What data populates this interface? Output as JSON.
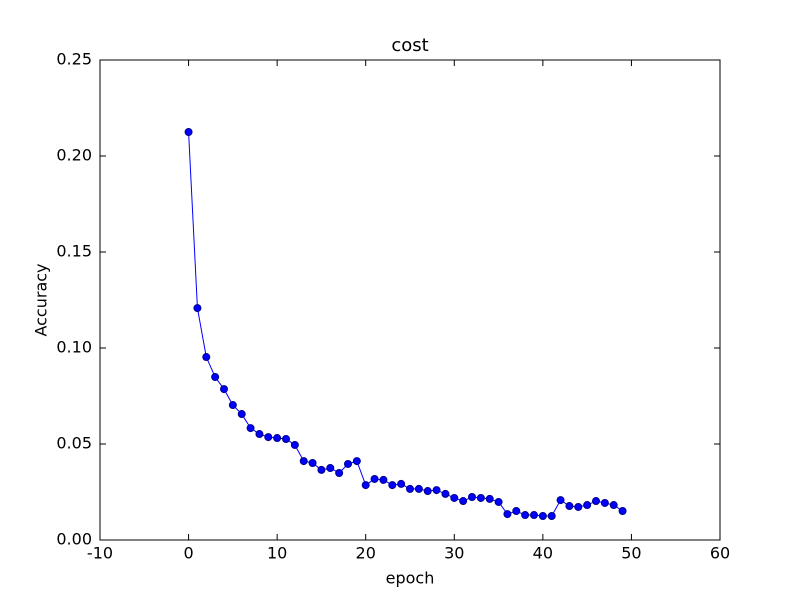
{
  "chart_data": {
    "type": "line",
    "title": "cost",
    "x_label": "epoch",
    "y_label": "Accuracy",
    "x": [
      0,
      1,
      2,
      3,
      4,
      5,
      6,
      7,
      8,
      9,
      10,
      11,
      12,
      13,
      14,
      15,
      16,
      17,
      18,
      19,
      20,
      21,
      22,
      23,
      24,
      25,
      26,
      27,
      28,
      29,
      30,
      31,
      32,
      33,
      34,
      35,
      36,
      37,
      38,
      39,
      40,
      41,
      42,
      43,
      44,
      45,
      46,
      47,
      48,
      49
    ],
    "series": [
      {
        "name": "cost",
        "color": "#0000ff",
        "marker_color": "#00008b",
        "values": [
          0.2125,
          0.1208,
          0.0953,
          0.0849,
          0.0786,
          0.0703,
          0.0656,
          0.0583,
          0.0552,
          0.0536,
          0.0531,
          0.0526,
          0.0495,
          0.0411,
          0.0401,
          0.0365,
          0.0375,
          0.0349,
          0.0396,
          0.0411,
          0.0286,
          0.0318,
          0.0313,
          0.0286,
          0.0292,
          0.0266,
          0.0266,
          0.0255,
          0.026,
          0.024,
          0.0219,
          0.0203,
          0.0224,
          0.0219,
          0.0214,
          0.0198,
          0.0135,
          0.0151,
          0.013,
          0.013,
          0.0125,
          0.0125,
          0.0208,
          0.0177,
          0.0172,
          0.0182,
          0.0203,
          0.0193,
          0.0182,
          0.0151
        ]
      }
    ],
    "xlim": [
      -10,
      60
    ],
    "xticks": [
      -10,
      0,
      10,
      20,
      30,
      40,
      50,
      60
    ],
    "ylim": [
      0,
      0.25
    ],
    "yticks": [
      {
        "value": 0,
        "label": "0.00"
      },
      {
        "value": 0.05,
        "label": "0.05"
      },
      {
        "value": 0.1,
        "label": "0.10"
      },
      {
        "value": 0.15,
        "label": "0.15"
      },
      {
        "value": 0.2,
        "label": "0.20"
      },
      {
        "value": 0.25,
        "label": "0.25"
      }
    ],
    "grid": false
  }
}
